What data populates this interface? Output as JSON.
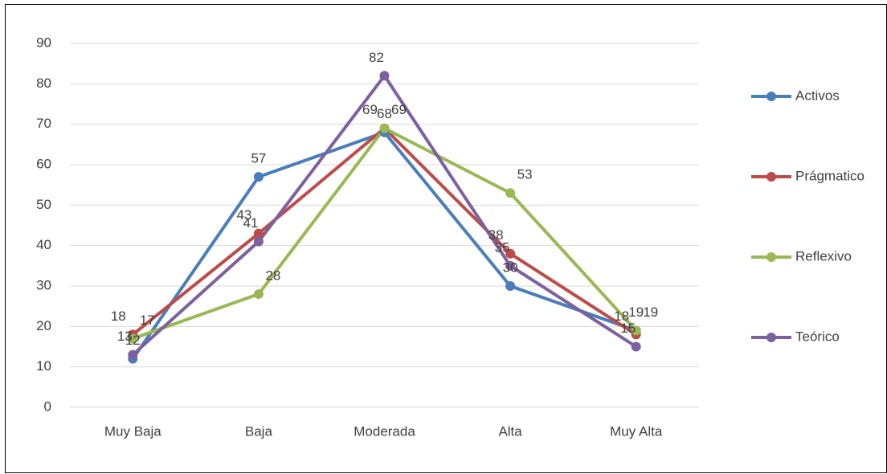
{
  "chart_data": {
    "type": "line",
    "categories": [
      "Muy Baja",
      "Baja",
      "Moderada",
      "Alta",
      "Muy Alta"
    ],
    "series": [
      {
        "name": "Activos",
        "color": "#4a7ebb",
        "values": [
          12,
          57,
          68,
          30,
          19
        ]
      },
      {
        "name": "Prágmatico",
        "color": "#be4b48",
        "values": [
          18,
          43,
          69,
          38,
          18
        ]
      },
      {
        "name": "Reflexivo",
        "color": "#98b954",
        "values": [
          17,
          28,
          69,
          53,
          19
        ]
      },
      {
        "name": "Teórico",
        "color": "#7d60a0",
        "values": [
          13,
          41,
          82,
          35,
          15
        ]
      }
    ],
    "ylim": [
      0,
      90
    ],
    "yticks": [
      0,
      10,
      20,
      30,
      40,
      50,
      60,
      70,
      80,
      90
    ],
    "grid": true,
    "legend": "right"
  }
}
